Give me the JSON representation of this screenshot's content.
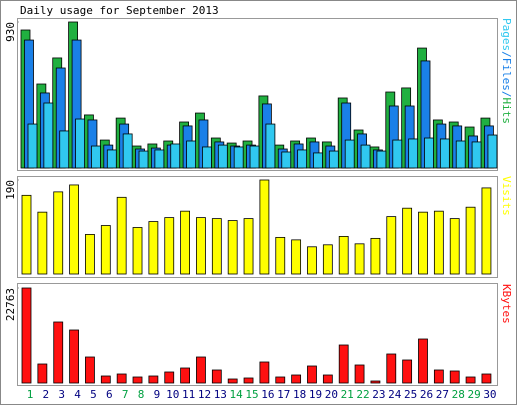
{
  "title": "Daily usage for September 2013",
  "legend_separator": "/",
  "chart_data": [
    {
      "type": "bar",
      "ylim": [
        0,
        930
      ],
      "yticks": [
        930
      ],
      "series": [
        {
          "name": "Hits",
          "color": "#20b040",
          "values": [
            879,
            535,
            701,
            930,
            338,
            178,
            318,
            140,
            153,
            172,
            293,
            350,
            191,
            159,
            172,
            459,
            146,
            172,
            191,
            166,
            446,
            242,
            134,
            484,
            510,
            764,
            306,
            293,
            261,
            318
          ]
        },
        {
          "name": "Files",
          "color": "#1a80e8",
          "values": [
            815,
            478,
            637,
            815,
            306,
            146,
            280,
            121,
            127,
            146,
            268,
            306,
            166,
            140,
            146,
            408,
            121,
            153,
            166,
            140,
            414,
            217,
            115,
            395,
            395,
            682,
            280,
            268,
            204,
            268
          ]
        },
        {
          "name": "Pages",
          "color": "#30c8f0",
          "values": [
            280,
            414,
            236,
            312,
            140,
            115,
            217,
            108,
            115,
            153,
            172,
            134,
            146,
            134,
            140,
            280,
            102,
            115,
            96,
            108,
            178,
            146,
            108,
            178,
            185,
            191,
            185,
            172,
            166,
            210
          ]
        }
      ]
    },
    {
      "type": "bar",
      "ylim": [
        0,
        190
      ],
      "yticks": [
        190
      ],
      "series": [
        {
          "name": "Visits",
          "color": "#ffff00",
          "values": [
            159,
            125,
            166,
            180,
            80,
            98,
            155,
            94,
            106,
            114,
            127,
            114,
            112,
            108,
            112,
            190,
            74,
            69,
            55,
            59,
            76,
            61,
            72,
            116,
            133,
            125,
            127,
            112,
            135,
            174
          ]
        }
      ]
    },
    {
      "type": "bar",
      "ylim": [
        0,
        22763
      ],
      "yticks": [
        22763
      ],
      "series": [
        {
          "name": "KBytes",
          "color": "#ff1010",
          "values": [
            22763,
            4552,
            14616,
            12699,
            6229,
            1677,
            2156,
            1438,
            1677,
            2636,
            3594,
            6229,
            3115,
            958,
            1198,
            5032,
            1438,
            1917,
            4073,
            1917,
            9105,
            4313,
            479,
            6948,
            5511,
            10542,
            3115,
            2875,
            1438,
            2156
          ]
        }
      ],
      "categories": [
        "1",
        "2",
        "3",
        "4",
        "5",
        "6",
        "7",
        "8",
        "9",
        "10",
        "11",
        "12",
        "13",
        "14",
        "15",
        "16",
        "17",
        "18",
        "19",
        "20",
        "21",
        "22",
        "23",
        "24",
        "25",
        "26",
        "27",
        "28",
        "29",
        "30"
      ],
      "category_colors": [
        "#00a040",
        "#000080",
        "#000080",
        "#000080",
        "#000080",
        "#000080",
        "#00a040",
        "#00a040",
        "#000080",
        "#000080",
        "#000080",
        "#000080",
        "#000080",
        "#00a040",
        "#00a040",
        "#000080",
        "#000080",
        "#000080",
        "#000080",
        "#000080",
        "#00a040",
        "#00a040",
        "#000080",
        "#000080",
        "#000080",
        "#000080",
        "#000080",
        "#00a040",
        "#00a040",
        "#000080"
      ]
    }
  ]
}
